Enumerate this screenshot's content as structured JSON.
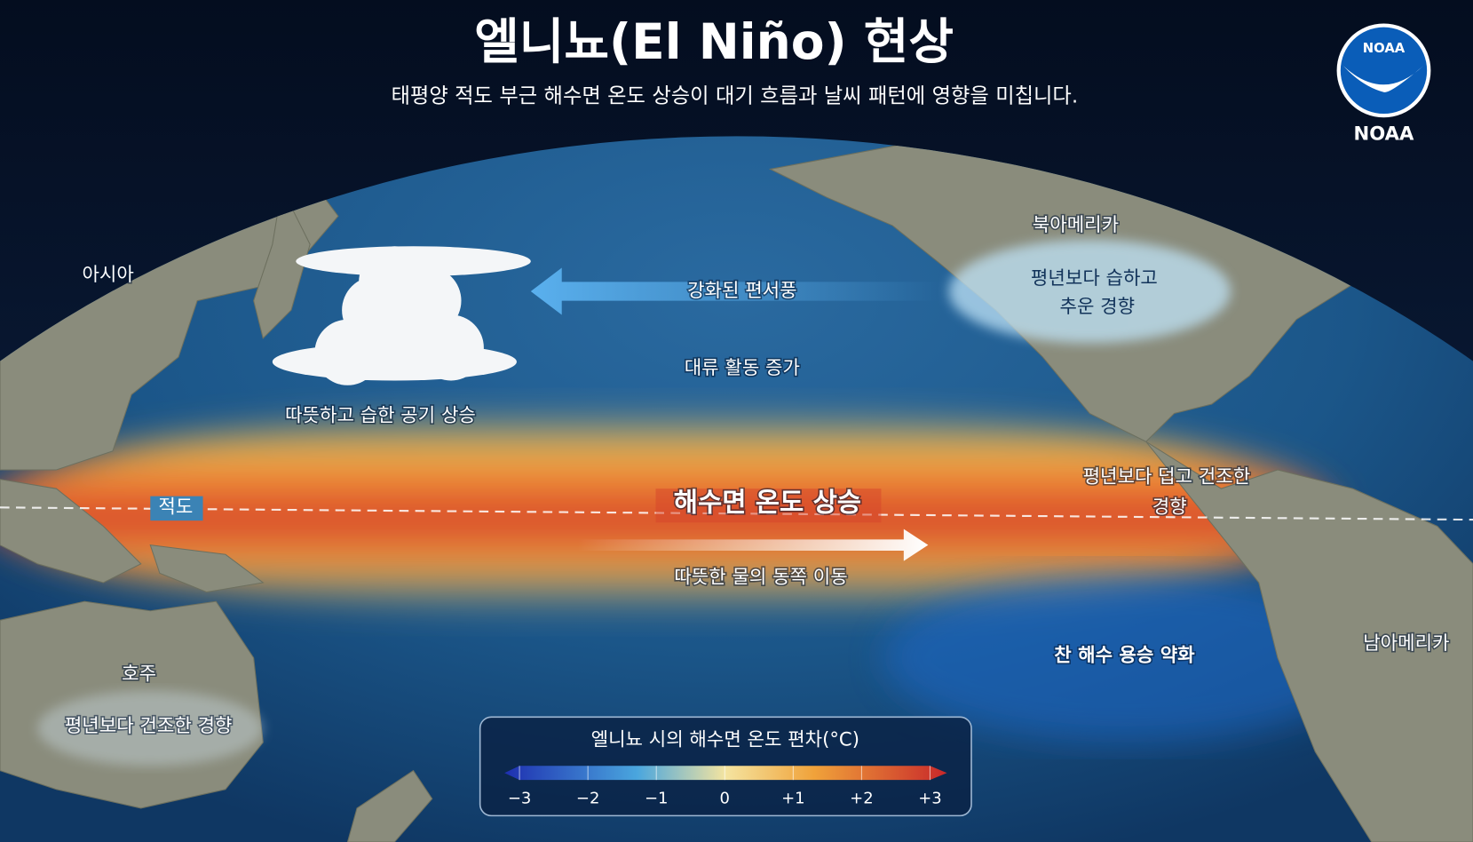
{
  "header": {
    "title": "엘니뇨(El Niño) 현상",
    "subtitle": "태평양 적도 부근 해수면 온도 상승이 대기 흐름과 날씨 패턴에 영향을 미칩니다."
  },
  "logo": {
    "badge": "NOAA",
    "caption": "NOAA"
  },
  "regions": {
    "asia": "아시아",
    "north_america": "북아메리카",
    "south_america": "남아메리카",
    "australia": "호주"
  },
  "annotations": {
    "north_america_effect": [
      "평년보다 습하고",
      "추운 경향"
    ],
    "westerlies": "강화된 편서풍",
    "convection": "대류 활동 증가",
    "rising_air": "따뜻하고 습한 공기 상승",
    "equator": "적도",
    "sst_rise": "해수면 온도 상승",
    "warm_water_east": "따뜻한 물의 동쪽 이동",
    "south_america_effect": [
      "평년보다 덥고 건조한",
      "경향"
    ],
    "upwelling": "찬 해수 용승 약화",
    "australia_effect": "평년보다 건조한 경향"
  },
  "legend": {
    "title": "엘니뇨 시의 해수면 온도 편차(°C)",
    "ticks": [
      {
        "value": -3,
        "label": "−3"
      },
      {
        "value": -2,
        "label": "−2"
      },
      {
        "value": -1,
        "label": "−1"
      },
      0,
      {
        "value": 1,
        "label": "+1"
      },
      {
        "value": 2,
        "label": "+2"
      },
      {
        "value": 3,
        "label": "+3"
      }
    ]
  }
}
